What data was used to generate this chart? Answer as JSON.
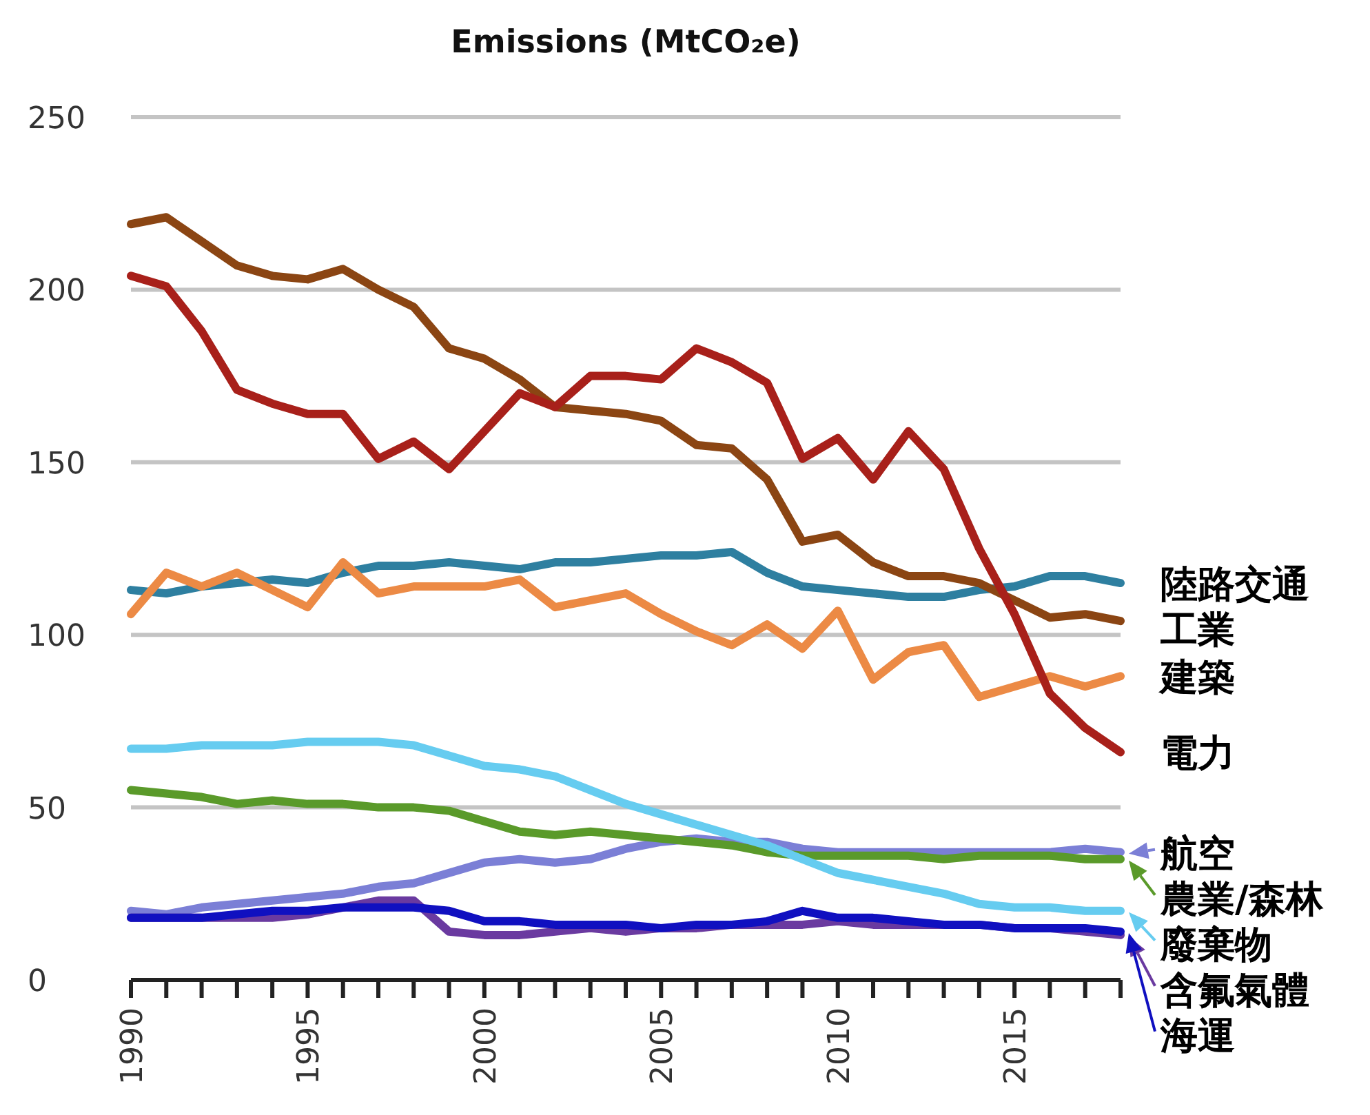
{
  "chart_data": {
    "type": "line",
    "title": "Emissions (MtCO₂e)",
    "x": [
      1990,
      1991,
      1992,
      1993,
      1994,
      1995,
      1996,
      1997,
      1998,
      1999,
      2000,
      2001,
      2002,
      2003,
      2004,
      2005,
      2006,
      2007,
      2008,
      2009,
      2010,
      2011,
      2012,
      2013,
      2014,
      2015,
      2016,
      2017,
      2018
    ],
    "xlim": [
      1990,
      2018
    ],
    "xticks": [
      1990,
      {
        "value": 1991,
        "label": null
      },
      {
        "value": 1992,
        "label": null
      },
      {
        "value": 1993,
        "label": null
      },
      {
        "value": 1994,
        "label": null
      },
      1995,
      {
        "value": 1996,
        "label": null
      },
      {
        "value": 1997,
        "label": null
      },
      {
        "value": 1998,
        "label": null
      },
      {
        "value": 1999,
        "label": null
      },
      2000,
      {
        "value": 2001,
        "label": null
      },
      {
        "value": 2002,
        "label": null
      },
      {
        "value": 2003,
        "label": null
      },
      {
        "value": 2004,
        "label": null
      },
      2005,
      {
        "value": 2006,
        "label": null
      },
      {
        "value": 2007,
        "label": null
      },
      {
        "value": 2008,
        "label": null
      },
      {
        "value": 2009,
        "label": null
      },
      2010,
      {
        "value": 2011,
        "label": null
      },
      {
        "value": 2012,
        "label": null
      },
      {
        "value": 2013,
        "label": null
      },
      {
        "value": 2014,
        "label": null
      },
      2015,
      {
        "value": 2016,
        "label": null
      },
      {
        "value": 2017,
        "label": null
      },
      {
        "value": 2018,
        "label": null
      }
    ],
    "ylim": [
      0,
      250
    ],
    "yticks": [
      0,
      50,
      100,
      150,
      200,
      250
    ],
    "grid": "y",
    "legend": "right",
    "marker": "none",
    "line_style": "solid",
    "series": [
      {
        "name": "陸路交通",
        "color": "#2e7fa0",
        "values": [
          113,
          112,
          114,
          115,
          116,
          115,
          118,
          120,
          120,
          121,
          120,
          119,
          121,
          121,
          122,
          123,
          123,
          124,
          118,
          114,
          113,
          112,
          111,
          111,
          113,
          114,
          117,
          117,
          115
        ]
      },
      {
        "name": "工業",
        "color": "#8b4513",
        "values": [
          219,
          221,
          214,
          207,
          204,
          203,
          206,
          200,
          195,
          183,
          180,
          174,
          166,
          165,
          164,
          162,
          155,
          154,
          145,
          127,
          129,
          121,
          117,
          117,
          115,
          110,
          105,
          106,
          104
        ]
      },
      {
        "name": "建築",
        "color": "#ec8a45",
        "values": [
          106,
          118,
          114,
          118,
          113,
          108,
          121,
          112,
          114,
          114,
          114,
          116,
          108,
          110,
          112,
          106,
          101,
          97,
          103,
          96,
          107,
          87,
          95,
          97,
          82,
          85,
          88,
          85,
          88
        ]
      },
      {
        "name": "電力",
        "color": "#a8201a",
        "values": [
          204,
          201,
          188,
          171,
          167,
          164,
          164,
          151,
          156,
          148,
          159,
          170,
          166,
          175,
          175,
          174,
          183,
          179,
          173,
          151,
          157,
          145,
          159,
          148,
          125,
          106,
          83,
          73,
          66
        ]
      },
      {
        "name": "航空",
        "color": "#7b7fd6",
        "values": [
          20,
          19,
          21,
          22,
          23,
          24,
          25,
          27,
          28,
          31,
          34,
          35,
          34,
          35,
          38,
          40,
          41,
          40,
          40,
          38,
          37,
          37,
          37,
          37,
          37,
          37,
          37,
          38,
          37
        ]
      },
      {
        "name": "農業/森林",
        "color": "#5a9a2a",
        "values": [
          55,
          54,
          53,
          51,
          52,
          51,
          51,
          50,
          50,
          49,
          46,
          43,
          42,
          43,
          42,
          41,
          40,
          39,
          37,
          36,
          36,
          36,
          36,
          35,
          36,
          36,
          36,
          35,
          35
        ]
      },
      {
        "name": "廢棄物",
        "color": "#66ccf0",
        "values": [
          67,
          67,
          68,
          68,
          68,
          69,
          69,
          69,
          68,
          65,
          62,
          61,
          59,
          55,
          51,
          48,
          45,
          42,
          39,
          35,
          31,
          29,
          27,
          25,
          22,
          21,
          21,
          20,
          20
        ]
      },
      {
        "name": "含氟氣體",
        "color": "#6a3aa0",
        "values": [
          18,
          18,
          18,
          18,
          18,
          19,
          21,
          23,
          23,
          14,
          13,
          13,
          14,
          15,
          14,
          15,
          15,
          16,
          16,
          16,
          17,
          16,
          16,
          16,
          16,
          15,
          15,
          14,
          13
        ]
      },
      {
        "name": "海運",
        "color": "#1010c0",
        "values": [
          18,
          18,
          18,
          19,
          20,
          20,
          21,
          21,
          21,
          20,
          17,
          17,
          16,
          16,
          16,
          15,
          16,
          16,
          17,
          20,
          18,
          18,
          17,
          16,
          16,
          15,
          15,
          15,
          14
        ]
      }
    ]
  }
}
